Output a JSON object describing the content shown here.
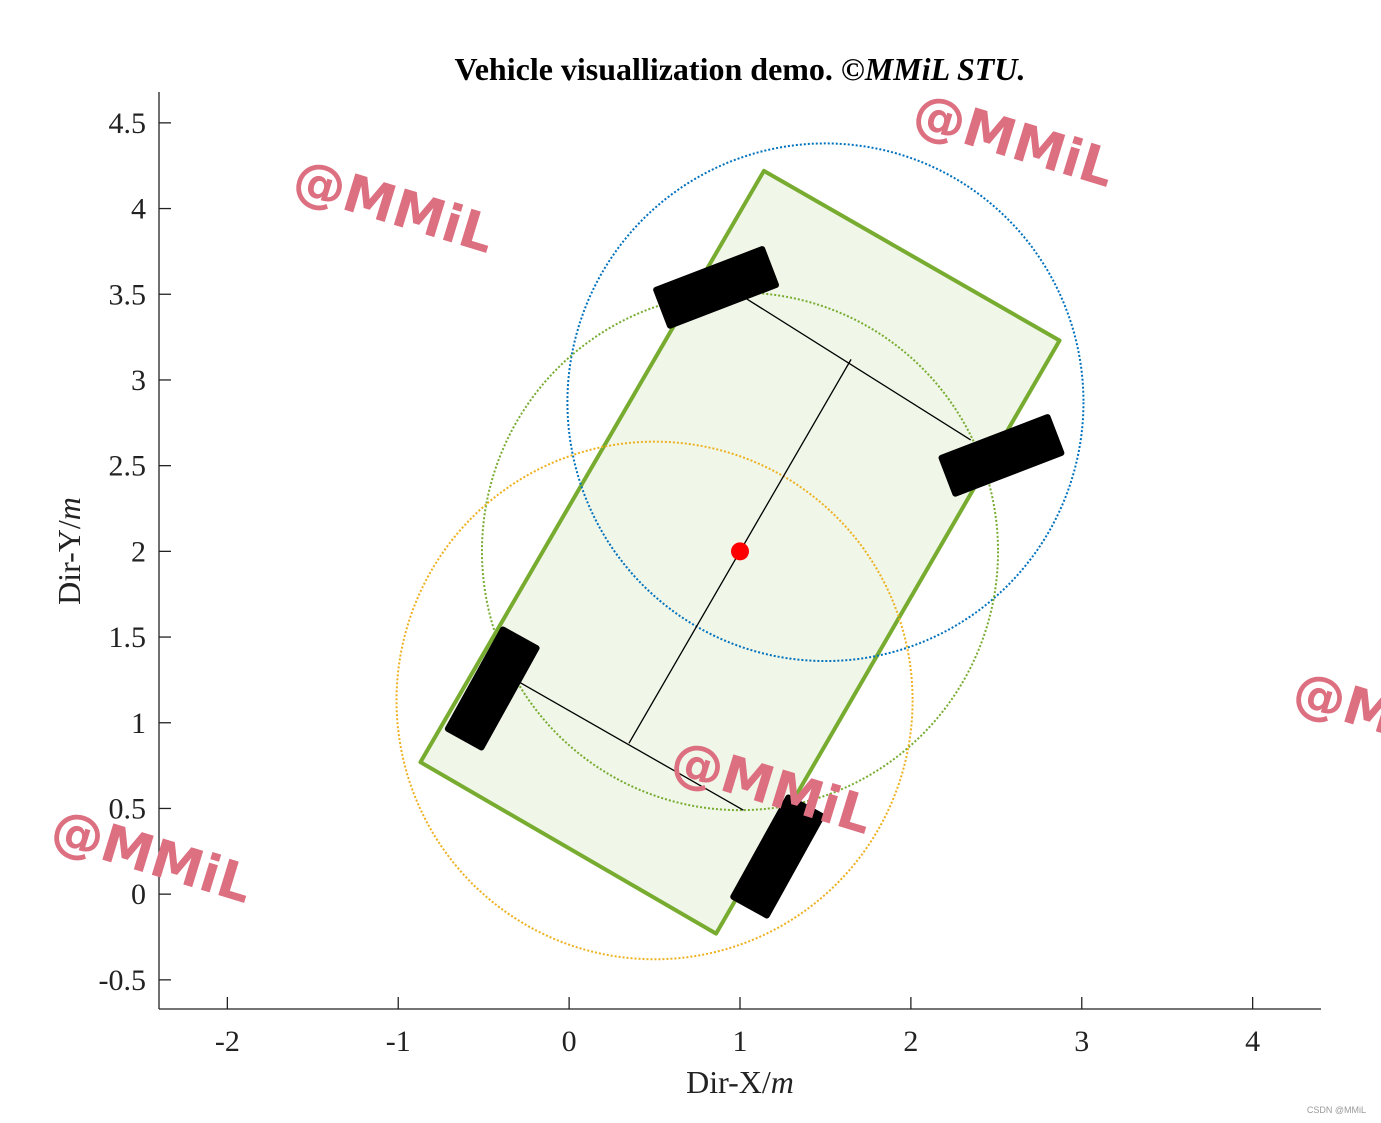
{
  "chart_data": {
    "type": "scatter",
    "title": "Vehicle visuallization demo.",
    "title_suffix": "©MMiL STU.",
    "xlabel": "Dir-X/",
    "xlabel_unit": "m",
    "ylabel": "Dir-Y/",
    "ylabel_unit": "m",
    "xlim": [
      -2.4,
      4.4
    ],
    "ylim": [
      -0.67,
      4.68
    ],
    "x_ticks": [
      -2,
      -1,
      0,
      1,
      2,
      3,
      4
    ],
    "x_tick_labels": [
      "-2",
      "-1",
      "0",
      "1",
      "2",
      "3",
      "4"
    ],
    "y_ticks": [
      -0.5,
      0,
      0.5,
      1,
      1.5,
      2,
      2.5,
      3,
      3.5,
      4,
      4.5
    ],
    "y_tick_labels": [
      "-0.5",
      "0",
      "0.5",
      "1",
      "1.5",
      "2",
      "2.5",
      "3",
      "3.5",
      "4",
      "4.5"
    ],
    "grid": false,
    "body_outline": [
      [
        1.14,
        4.22
      ],
      [
        2.87,
        3.23
      ],
      [
        0.86,
        -0.23
      ],
      [
        -0.87,
        0.77
      ]
    ],
    "center": [
      1.0,
      2.0
    ],
    "longitudinal_axis": [
      [
        1.65,
        3.12
      ],
      [
        0.35,
        0.88
      ]
    ],
    "front_axle": [
      [
        0.98,
        3.51
      ],
      [
        2.35,
        2.65
      ]
    ],
    "rear_axle": [
      [
        -0.35,
        1.27
      ],
      [
        1.02,
        0.49
      ]
    ],
    "wheels": [
      {
        "center": [
          0.86,
          3.54
        ],
        "angle_deg": 21,
        "length": 0.7,
        "width": 0.26
      },
      {
        "center": [
          2.53,
          2.56
        ],
        "angle_deg": 21,
        "length": 0.7,
        "width": 0.26
      },
      {
        "center": [
          -0.45,
          1.2
        ],
        "angle_deg": 61,
        "length": 0.7,
        "width": 0.26
      },
      {
        "center": [
          1.22,
          0.22
        ],
        "angle_deg": 61,
        "length": 0.7,
        "width": 0.26
      }
    ],
    "circles": [
      {
        "center": [
          1.5,
          2.87
        ],
        "radius": 1.51,
        "color": "#0072bd"
      },
      {
        "center": [
          1.0,
          2.0
        ],
        "radius": 1.51,
        "color": "#77ac30"
      },
      {
        "center": [
          0.5,
          1.13
        ],
        "radius": 1.51,
        "color": "#edb120"
      }
    ],
    "colors": {
      "body_edge": "#77ac30",
      "body_fill": "#f0f6e8",
      "wheel": "#000000",
      "center_point": "#ff0000",
      "axis_line": "#000000"
    }
  },
  "watermarks": [
    "@MMiL",
    "@MMiL",
    "@MMiL",
    "@MMiL",
    "@MMiL"
  ],
  "credit": "CSDN @MMiL"
}
